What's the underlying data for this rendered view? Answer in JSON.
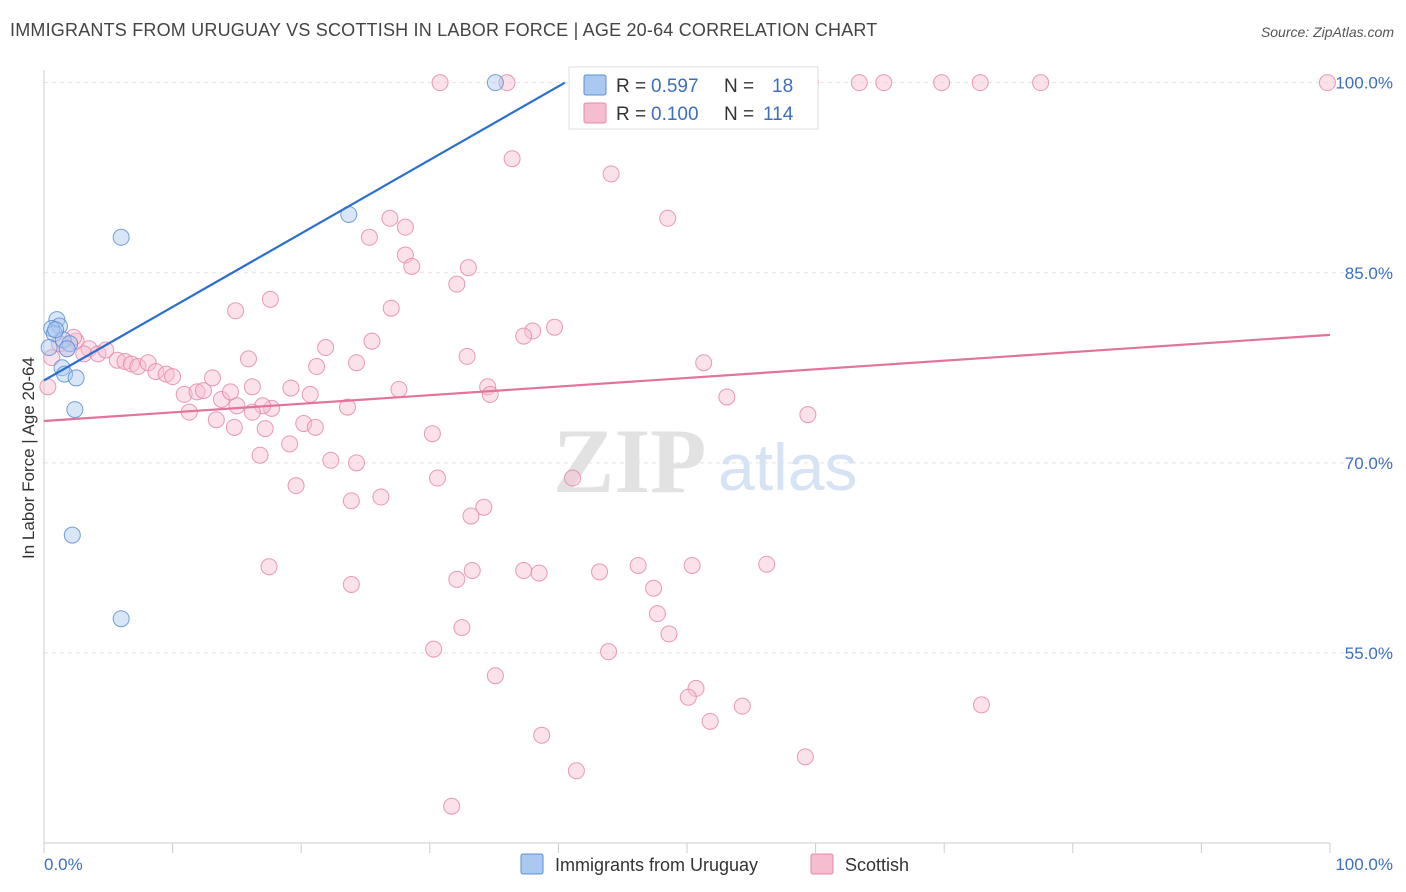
{
  "title": "IMMIGRANTS FROM URUGUAY VS SCOTTISH IN LABOR FORCE | AGE 20-64 CORRELATION CHART",
  "source": "Source: ZipAtlas.com",
  "watermark": {
    "zip": "ZIP",
    "atlas": "atlas"
  },
  "legend": {
    "r_label": "R =",
    "n_label": "N =",
    "series": [
      {
        "name": "Immigrants from Uruguay",
        "r": "0.597",
        "n": "18",
        "fill": "#aac8f0",
        "stroke": "#5a8fd6",
        "line": "#2b6fce"
      },
      {
        "name": "Scottish",
        "r": "0.100",
        "n": "114",
        "fill": "#f6bcd0",
        "stroke": "#e48aa9",
        "line": "#e2739c"
      }
    ]
  },
  "chart_data": {
    "type": "scatter",
    "title": "IMMIGRANTS FROM URUGUAY VS SCOTTISH IN LABOR FORCE | AGE 20-64 CORRELATION CHART",
    "xlabel": "",
    "ylabel": "In Labor Force | Age 20-64",
    "xlim": [
      0,
      100
    ],
    "ylim": [
      40,
      101
    ],
    "x_tick_labels": [
      "0.0%",
      "100.0%"
    ],
    "y_ticks": [
      55,
      70,
      85,
      100
    ],
    "y_tick_labels": [
      "55.0%",
      "70.0%",
      "85.0%",
      "100.0%"
    ],
    "grid": true,
    "series": [
      {
        "name": "Immigrants from Uruguay",
        "trend": {
          "x": [
            0,
            40.5
          ],
          "y": [
            76.5,
            100.0
          ]
        },
        "points": [
          [
            35.1,
            100.0
          ],
          [
            23.7,
            89.6
          ],
          [
            6.0,
            87.8
          ],
          [
            1.0,
            81.3
          ],
          [
            1.2,
            80.8
          ],
          [
            0.6,
            80.6
          ],
          [
            0.8,
            80.2
          ],
          [
            1.5,
            79.7
          ],
          [
            2.0,
            79.4
          ],
          [
            0.4,
            79.1
          ],
          [
            1.4,
            77.5
          ],
          [
            1.6,
            77.0
          ],
          [
            2.5,
            76.7
          ],
          [
            2.4,
            74.2
          ],
          [
            2.2,
            64.3
          ],
          [
            6.0,
            57.7
          ],
          [
            0.9,
            80.5
          ],
          [
            1.8,
            79.0
          ]
        ]
      },
      {
        "name": "Scottish",
        "trend": {
          "x": [
            0,
            100
          ],
          "y": [
            73.3,
            80.1
          ]
        },
        "points": [
          [
            30.8,
            100.0
          ],
          [
            36.0,
            100.0
          ],
          [
            43.2,
            100.0
          ],
          [
            59.6,
            100.0
          ],
          [
            63.4,
            100.0
          ],
          [
            65.3,
            100.0
          ],
          [
            69.8,
            100.0
          ],
          [
            72.8,
            100.0
          ],
          [
            77.5,
            100.0
          ],
          [
            99.8,
            100.0
          ],
          [
            36.4,
            94.0
          ],
          [
            44.1,
            92.8
          ],
          [
            48.5,
            89.3
          ],
          [
            26.9,
            89.3
          ],
          [
            28.1,
            88.6
          ],
          [
            25.3,
            87.8
          ],
          [
            28.1,
            86.4
          ],
          [
            28.6,
            85.5
          ],
          [
            33.0,
            85.4
          ],
          [
            32.1,
            84.1
          ],
          [
            17.6,
            82.9
          ],
          [
            27.0,
            82.2
          ],
          [
            14.9,
            82.0
          ],
          [
            39.7,
            80.7
          ],
          [
            38.0,
            80.4
          ],
          [
            37.3,
            80.0
          ],
          [
            25.5,
            79.6
          ],
          [
            21.9,
            79.1
          ],
          [
            1.2,
            79.4
          ],
          [
            2.5,
            79.6
          ],
          [
            3.5,
            79.0
          ],
          [
            3.1,
            78.6
          ],
          [
            4.2,
            78.6
          ],
          [
            4.8,
            78.9
          ],
          [
            5.7,
            78.1
          ],
          [
            6.3,
            78.0
          ],
          [
            6.8,
            77.8
          ],
          [
            7.3,
            77.6
          ],
          [
            8.1,
            77.9
          ],
          [
            8.7,
            77.2
          ],
          [
            9.5,
            77.0
          ],
          [
            10.0,
            76.8
          ],
          [
            15.9,
            78.2
          ],
          [
            21.2,
            77.6
          ],
          [
            24.3,
            77.9
          ],
          [
            32.9,
            78.4
          ],
          [
            51.3,
            77.9
          ],
          [
            10.9,
            75.4
          ],
          [
            11.9,
            75.6
          ],
          [
            12.4,
            75.7
          ],
          [
            13.1,
            76.7
          ],
          [
            13.8,
            75.0
          ],
          [
            14.5,
            75.6
          ],
          [
            15.0,
            74.5
          ],
          [
            16.2,
            76.0
          ],
          [
            17.7,
            74.3
          ],
          [
            19.2,
            75.9
          ],
          [
            20.7,
            75.4
          ],
          [
            23.6,
            74.4
          ],
          [
            27.6,
            75.8
          ],
          [
            34.5,
            76.0
          ],
          [
            34.7,
            75.4
          ],
          [
            53.1,
            75.2
          ],
          [
            59.4,
            73.8
          ],
          [
            11.3,
            74.0
          ],
          [
            13.4,
            73.4
          ],
          [
            14.8,
            72.8
          ],
          [
            17.0,
            74.5
          ],
          [
            20.2,
            73.1
          ],
          [
            21.1,
            72.8
          ],
          [
            30.2,
            72.3
          ],
          [
            16.2,
            74.0
          ],
          [
            17.2,
            72.7
          ],
          [
            19.1,
            71.5
          ],
          [
            16.8,
            70.6
          ],
          [
            22.3,
            70.2
          ],
          [
            24.3,
            70.0
          ],
          [
            30.6,
            68.8
          ],
          [
            41.1,
            68.8
          ],
          [
            19.6,
            68.2
          ],
          [
            23.9,
            67.0
          ],
          [
            26.2,
            67.3
          ],
          [
            34.2,
            66.5
          ],
          [
            33.2,
            65.8
          ],
          [
            17.5,
            61.8
          ],
          [
            33.3,
            61.5
          ],
          [
            37.3,
            61.5
          ],
          [
            38.5,
            61.3
          ],
          [
            43.2,
            61.4
          ],
          [
            32.1,
            60.8
          ],
          [
            46.2,
            61.9
          ],
          [
            50.4,
            61.9
          ],
          [
            47.4,
            60.1
          ],
          [
            56.2,
            62.0
          ],
          [
            23.9,
            60.4
          ],
          [
            32.5,
            57.0
          ],
          [
            47.7,
            58.1
          ],
          [
            48.6,
            56.5
          ],
          [
            30.3,
            55.3
          ],
          [
            43.9,
            55.1
          ],
          [
            35.1,
            53.2
          ],
          [
            50.7,
            52.2
          ],
          [
            50.1,
            51.5
          ],
          [
            54.3,
            50.8
          ],
          [
            51.8,
            49.6
          ],
          [
            72.9,
            50.9
          ],
          [
            38.7,
            48.5
          ],
          [
            59.2,
            46.8
          ],
          [
            41.4,
            45.7
          ],
          [
            31.7,
            42.9
          ],
          [
            0.3,
            76.0
          ],
          [
            0.6,
            78.3
          ],
          [
            1.8,
            79.0
          ],
          [
            2.3,
            79.9
          ]
        ]
      }
    ]
  }
}
